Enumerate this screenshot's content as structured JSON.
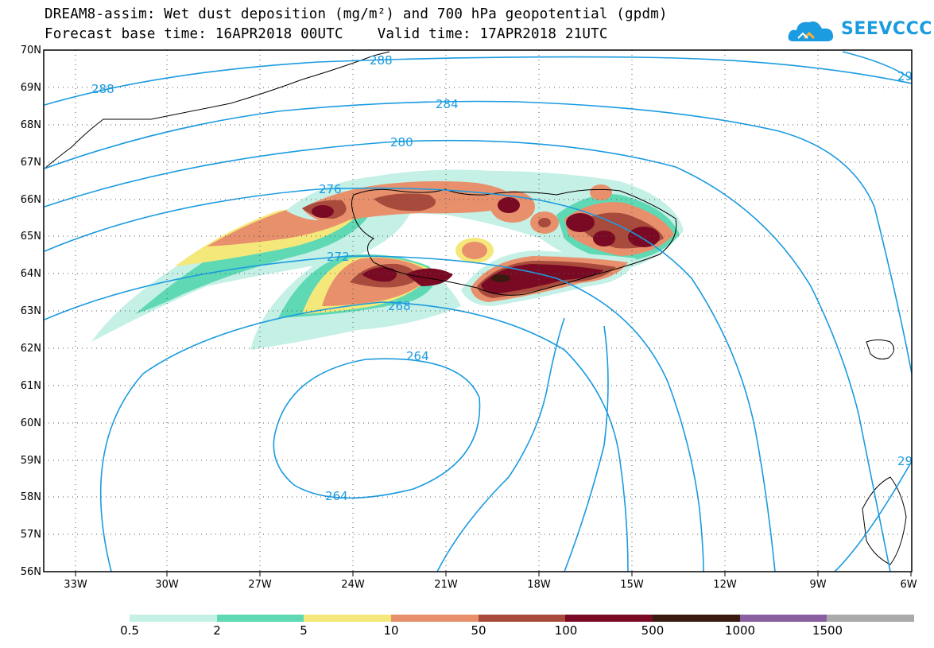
{
  "title": {
    "line1": "DREAM8-assim: Wet dust deposition (mg/m²) and 700 hPa geopotential (gpdm)",
    "line2": "Forecast base time: 16APR2018 00UTC    Valid time: 17APR2018 21UTC"
  },
  "logo": {
    "text": "SEEVCCC",
    "icon": "cloud-icon",
    "color": "#1b9be0"
  },
  "axes": {
    "lat_labels": [
      "70N",
      "69N",
      "68N",
      "67N",
      "66N",
      "65N",
      "64N",
      "63N",
      "62N",
      "61N",
      "60N",
      "59N",
      "58N",
      "57N",
      "56N"
    ],
    "lon_labels": [
      "33W",
      "30W",
      "27W",
      "24W",
      "21W",
      "18W",
      "15W",
      "12W",
      "9W",
      "6W"
    ]
  },
  "contours": {
    "color": "#1b9be0",
    "labels": [
      "288",
      "288",
      "284",
      "280",
      "276",
      "272",
      "268",
      "264",
      "264",
      "29",
      "29"
    ]
  },
  "legend": {
    "colors": [
      "#c4f0e6",
      "#5ed9b4",
      "#f5e87a",
      "#e8906c",
      "#a84a3c",
      "#7a0a24",
      "#3a1a10",
      "#8a5fa0",
      "#aaaaaa"
    ],
    "labels": [
      "0.5",
      "2",
      "5",
      "10",
      "50",
      "100",
      "500",
      "1000",
      "1500"
    ]
  }
}
